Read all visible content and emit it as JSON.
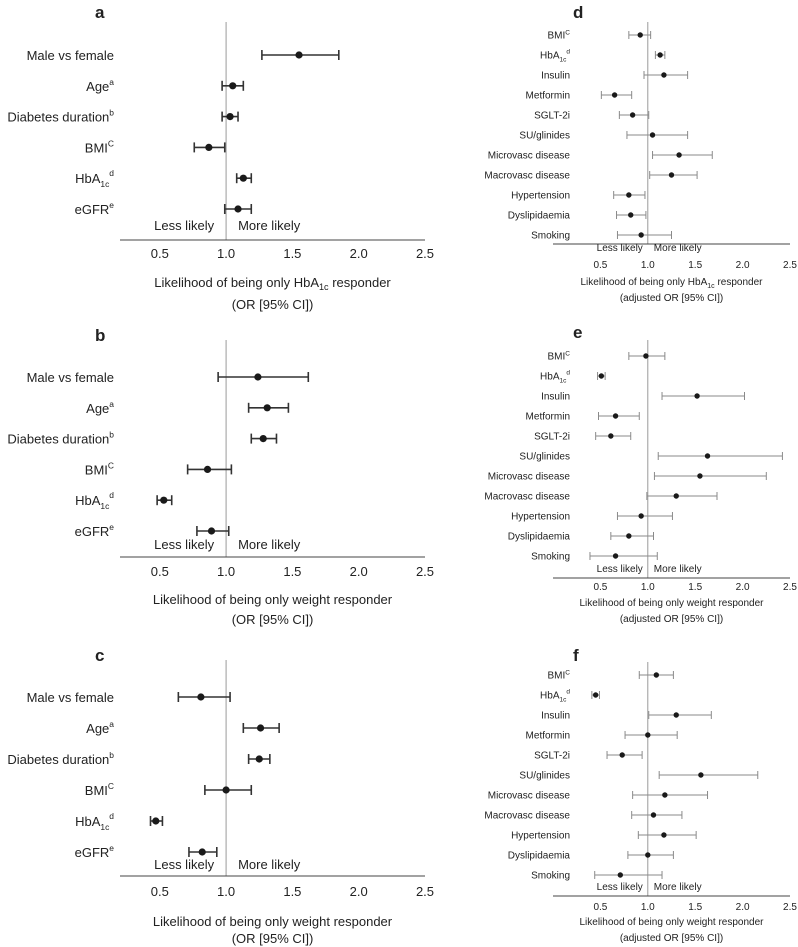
{
  "chart_data": [
    {
      "panel": "a",
      "type": "forest",
      "size": "large",
      "xlim": [
        0.2,
        2.5
      ],
      "ticks": [
        "0.5",
        "1.0",
        "1.5",
        "2.0",
        "2.5"
      ],
      "xlabel": "Likelihood of being only HbA1c responder",
      "xlabel2": "(OR [95% CI])",
      "less": "Less likely",
      "more": "More likely",
      "rows": [
        {
          "label": "Male vs female",
          "or": 1.55,
          "lo": 1.27,
          "hi": 1.85
        },
        {
          "label": "Age",
          "sup": "a",
          "or": 1.05,
          "lo": 0.97,
          "hi": 1.13
        },
        {
          "label": "Diabetes duration",
          "sup": "b",
          "or": 1.03,
          "lo": 0.97,
          "hi": 1.09
        },
        {
          "label": "BMI",
          "sup": "C",
          "or": 0.87,
          "lo": 0.76,
          "hi": 0.99
        },
        {
          "label": "HbA",
          "sub": "1c",
          "sup": "d",
          "or": 1.13,
          "lo": 1.08,
          "hi": 1.19
        },
        {
          "label": "eGFR",
          "sup": "e",
          "or": 1.09,
          "lo": 0.99,
          "hi": 1.19
        }
      ]
    },
    {
      "panel": "b",
      "type": "forest",
      "size": "large",
      "xlim": [
        0.2,
        2.5
      ],
      "ticks": [
        "0.5",
        "1.0",
        "1.5",
        "2.0",
        "2.5"
      ],
      "xlabel": "Likelihood of being only weight responder",
      "xlabel2": "(OR [95% CI])",
      "less": "Less likely",
      "more": "More likely",
      "rows": [
        {
          "label": "Male vs female",
          "or": 1.24,
          "lo": 0.94,
          "hi": 1.62
        },
        {
          "label": "Age",
          "sup": "a",
          "or": 1.31,
          "lo": 1.17,
          "hi": 1.47
        },
        {
          "label": "Diabetes duration",
          "sup": "b",
          "or": 1.28,
          "lo": 1.19,
          "hi": 1.38
        },
        {
          "label": "BMI",
          "sup": "C",
          "or": 0.86,
          "lo": 0.71,
          "hi": 1.04
        },
        {
          "label": "HbA",
          "sub": "1c",
          "sup": "d",
          "or": 0.53,
          "lo": 0.48,
          "hi": 0.59
        },
        {
          "label": "eGFR",
          "sup": "e",
          "or": 0.89,
          "lo": 0.78,
          "hi": 1.02
        }
      ]
    },
    {
      "panel": "c",
      "type": "forest",
      "size": "large",
      "xlim": [
        0.2,
        2.5
      ],
      "ticks": [
        "0.5",
        "1.0",
        "1.5",
        "2.0",
        "2.5"
      ],
      "xlabel": "Likelihood of being only weight responder",
      "xlabel2": "(OR [95% CI])",
      "less": "Less likely",
      "more": "More likely",
      "rows": [
        {
          "label": "Male vs female",
          "or": 0.81,
          "lo": 0.64,
          "hi": 1.03
        },
        {
          "label": "Age",
          "sup": "a",
          "or": 1.26,
          "lo": 1.13,
          "hi": 1.4
        },
        {
          "label": "Diabetes duration",
          "sup": "b",
          "or": 1.25,
          "lo": 1.17,
          "hi": 1.33
        },
        {
          "label": "BMI",
          "sup": "C",
          "or": 1.0,
          "lo": 0.84,
          "hi": 1.19
        },
        {
          "label": "HbA",
          "sub": "1c",
          "sup": "d",
          "or": 0.47,
          "lo": 0.43,
          "hi": 0.52
        },
        {
          "label": "eGFR",
          "sup": "e",
          "or": 0.82,
          "lo": 0.72,
          "hi": 0.93
        }
      ]
    },
    {
      "panel": "d",
      "type": "forest",
      "size": "small",
      "xlim": [
        0.0,
        2.5
      ],
      "ticks": [
        "0.5",
        "1.0",
        "1.5",
        "2.0",
        "2.5"
      ],
      "xlabel": "Likelihood of being only HbA1c responder",
      "xlabel2": "(adjusted OR [95% CI])",
      "less": "Less likely",
      "more": "More likely",
      "rows": [
        {
          "label": "BMI",
          "sup": "C",
          "or": 0.92,
          "lo": 0.8,
          "hi": 1.03
        },
        {
          "label": "HbA",
          "sub": "1c",
          "sup": "d",
          "or": 1.13,
          "lo": 1.08,
          "hi": 1.18
        },
        {
          "label": "Insulin",
          "or": 1.17,
          "lo": 0.96,
          "hi": 1.42
        },
        {
          "label": "Metformin",
          "or": 0.65,
          "lo": 0.51,
          "hi": 0.83
        },
        {
          "label": "SGLT-2i",
          "or": 0.84,
          "lo": 0.7,
          "hi": 1.01
        },
        {
          "label": "SU/glinides",
          "or": 1.05,
          "lo": 0.78,
          "hi": 1.42
        },
        {
          "label": "Microvasc disease",
          "or": 1.33,
          "lo": 1.05,
          "hi": 1.68
        },
        {
          "label": "Macrovasc disease",
          "or": 1.25,
          "lo": 1.02,
          "hi": 1.52
        },
        {
          "label": "Hypertension",
          "or": 0.8,
          "lo": 0.64,
          "hi": 0.97
        },
        {
          "label": "Dyslipidaemia",
          "or": 0.82,
          "lo": 0.67,
          "hi": 0.98
        },
        {
          "label": "Smoking",
          "or": 0.93,
          "lo": 0.68,
          "hi": 1.25
        }
      ]
    },
    {
      "panel": "e",
      "type": "forest",
      "size": "small",
      "xlim": [
        0.0,
        2.5
      ],
      "ticks": [
        "0.5",
        "1.0",
        "1.5",
        "2.0",
        "2.5"
      ],
      "xlabel": "Likelihood of being only weight responder",
      "xlabel2": "(adjusted OR [95% CI])",
      "less": "Less likely",
      "more": "More likely",
      "rows": [
        {
          "label": "BMI",
          "sup": "C",
          "or": 0.98,
          "lo": 0.8,
          "hi": 1.18
        },
        {
          "label": "HbA",
          "sub": "1c",
          "sup": "d",
          "or": 0.51,
          "lo": 0.47,
          "hi": 0.55
        },
        {
          "label": "Insulin",
          "or": 1.52,
          "lo": 1.15,
          "hi": 2.02
        },
        {
          "label": "Metformin",
          "or": 0.66,
          "lo": 0.48,
          "hi": 0.91
        },
        {
          "label": "SGLT-2i",
          "or": 0.61,
          "lo": 0.45,
          "hi": 0.82
        },
        {
          "label": "SU/glinides",
          "or": 1.63,
          "lo": 1.11,
          "hi": 2.42
        },
        {
          "label": "Microvasc disease",
          "or": 1.55,
          "lo": 1.07,
          "hi": 2.25
        },
        {
          "label": "Macrovasc disease",
          "or": 1.3,
          "lo": 0.99,
          "hi": 1.73
        },
        {
          "label": "Hypertension",
          "or": 0.93,
          "lo": 0.68,
          "hi": 1.26
        },
        {
          "label": "Dyslipidaemia",
          "or": 0.8,
          "lo": 0.61,
          "hi": 1.06
        },
        {
          "label": "Smoking",
          "or": 0.66,
          "lo": 0.39,
          "hi": 1.1
        }
      ]
    },
    {
      "panel": "f",
      "type": "forest",
      "size": "small",
      "xlim": [
        0.0,
        2.5
      ],
      "ticks": [
        "0.5",
        "1.0",
        "1.5",
        "2.0",
        "2.5"
      ],
      "xlabel": "Likelihood of being only weight responder",
      "xlabel2": "(adjusted OR [95% CI])",
      "less": "Less likely",
      "more": "More likely",
      "rows": [
        {
          "label": "BMI",
          "sup": "C",
          "or": 1.09,
          "lo": 0.91,
          "hi": 1.27
        },
        {
          "label": "HbA",
          "sub": "1c",
          "sup": "d",
          "or": 0.45,
          "lo": 0.41,
          "hi": 0.49
        },
        {
          "label": "Insulin",
          "or": 1.3,
          "lo": 1.01,
          "hi": 1.67
        },
        {
          "label": "Metformin",
          "or": 1.0,
          "lo": 0.76,
          "hi": 1.31
        },
        {
          "label": "SGLT-2i",
          "or": 0.73,
          "lo": 0.57,
          "hi": 0.94
        },
        {
          "label": "SU/glinides",
          "or": 1.56,
          "lo": 1.12,
          "hi": 2.16
        },
        {
          "label": "Microvasc disease",
          "or": 1.18,
          "lo": 0.84,
          "hi": 1.63
        },
        {
          "label": "Macrovasc disease",
          "or": 1.06,
          "lo": 0.83,
          "hi": 1.36
        },
        {
          "label": "Hypertension",
          "or": 1.17,
          "lo": 0.9,
          "hi": 1.51
        },
        {
          "label": "Dyslipidaemia",
          "or": 1.0,
          "lo": 0.79,
          "hi": 1.27
        },
        {
          "label": "Smoking",
          "or": 0.71,
          "lo": 0.44,
          "hi": 1.15
        }
      ]
    }
  ]
}
